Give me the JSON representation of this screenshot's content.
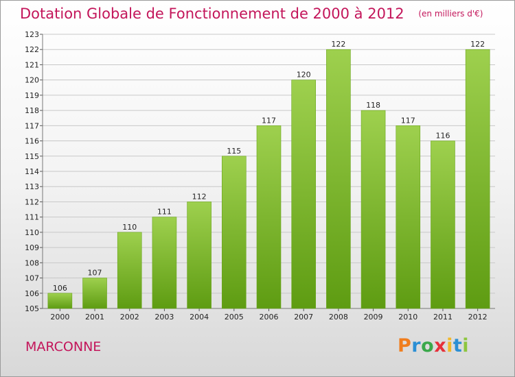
{
  "title": "Dotation Globale de Fonctionnement de 2000 à 2012",
  "unit_note": "(en milliers d'€)",
  "city": "MARCONNE",
  "logo": {
    "text": "Proxiti",
    "letter_colors": [
      "#f07d1d",
      "#2b8fd4",
      "#3aa84a",
      "#e6303a",
      "#f2b82a",
      "#2b8fd4",
      "#8dc63f"
    ]
  },
  "colors": {
    "title": "#c3155a",
    "bar_light": "#9ed04e",
    "bar_dark": "#5e9c12",
    "grid": "#c8c8c8"
  },
  "chart_data": {
    "type": "bar",
    "categories": [
      "2000",
      "2001",
      "2002",
      "2003",
      "2004",
      "2005",
      "2006",
      "2007",
      "2008",
      "2009",
      "2010",
      "2011",
      "2012"
    ],
    "values": [
      106,
      107,
      110,
      111,
      112,
      115,
      117,
      120,
      122,
      118,
      117,
      116,
      122
    ],
    "title": "Dotation Globale de Fonctionnement de 2000 à 2012",
    "xlabel": "",
    "ylabel": "",
    "ylim": [
      105,
      123
    ],
    "yticks": [
      105,
      106,
      107,
      108,
      109,
      110,
      111,
      112,
      113,
      114,
      115,
      116,
      117,
      118,
      119,
      120,
      121,
      122,
      123
    ],
    "grid": true
  }
}
